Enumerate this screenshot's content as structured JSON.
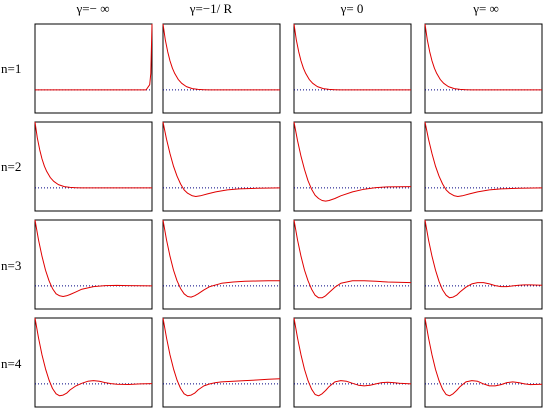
{
  "chart_data": {
    "type": "line",
    "title": "",
    "column_labels": [
      "γ=− ∞",
      "γ=−1/ R",
      "γ= 0",
      "γ= ∞"
    ],
    "row_labels": [
      "n=1",
      "n=2",
      "n=3",
      "n=4"
    ],
    "xlabel": "",
    "ylabel": "",
    "xlim": [
      0,
      1
    ],
    "ylim": [
      -0.35,
      1.0
    ],
    "baseline": 0,
    "colors": {
      "curve": "#e00000",
      "baseline": "#000080",
      "frame": "#000000"
    },
    "panels": [
      [
        {
          "x": [
            0,
            0.1,
            0.2,
            0.3,
            0.4,
            0.5,
            0.6,
            0.7,
            0.8,
            0.9,
            0.95,
            0.98,
            0.99,
            1.0
          ],
          "y": [
            0,
            0,
            0,
            0,
            0,
            0,
            0,
            0,
            0,
            0,
            0,
            0.08,
            0.25,
            1.0
          ]
        },
        {
          "x": [
            0,
            0.02,
            0.04,
            0.06,
            0.08,
            0.1,
            0.13,
            0.16,
            0.2,
            0.25,
            0.3,
            0.35,
            0.4,
            0.5,
            0.6,
            1.0
          ],
          "y": [
            1.0,
            0.76,
            0.58,
            0.44,
            0.33,
            0.25,
            0.16,
            0.1,
            0.05,
            0.02,
            0.008,
            0.003,
            0.001,
            0,
            0,
            0
          ]
        },
        {
          "x": [
            0,
            0.02,
            0.04,
            0.06,
            0.08,
            0.1,
            0.13,
            0.16,
            0.2,
            0.25,
            0.3,
            0.35,
            0.4,
            0.5,
            0.6,
            1.0
          ],
          "y": [
            1.0,
            0.76,
            0.58,
            0.44,
            0.33,
            0.25,
            0.16,
            0.1,
            0.05,
            0.02,
            0.008,
            0.003,
            0.001,
            0,
            0,
            0
          ]
        },
        {
          "x": [
            0,
            0.02,
            0.04,
            0.06,
            0.08,
            0.1,
            0.13,
            0.16,
            0.2,
            0.25,
            0.3,
            0.35,
            0.4,
            0.5,
            0.6,
            1.0
          ],
          "y": [
            1.0,
            0.76,
            0.58,
            0.44,
            0.33,
            0.25,
            0.16,
            0.1,
            0.05,
            0.02,
            0.008,
            0.003,
            0.001,
            0,
            0,
            0
          ]
        }
      ],
      [
        {
          "x": [
            0,
            0.02,
            0.04,
            0.06,
            0.08,
            0.1,
            0.13,
            0.16,
            0.2,
            0.25,
            0.3,
            0.35,
            0.4,
            0.5,
            0.6,
            1.0
          ],
          "y": [
            1.0,
            0.76,
            0.58,
            0.44,
            0.33,
            0.25,
            0.16,
            0.1,
            0.05,
            0.02,
            0.008,
            0.003,
            0.001,
            0,
            0,
            0
          ]
        },
        {
          "x": [
            0,
            0.03,
            0.06,
            0.09,
            0.12,
            0.15,
            0.18,
            0.21,
            0.25,
            0.28,
            0.32,
            0.38,
            0.45,
            0.55,
            0.65,
            0.8,
            1.0
          ],
          "y": [
            1.0,
            0.74,
            0.52,
            0.33,
            0.18,
            0.06,
            -0.03,
            -0.08,
            -0.12,
            -0.13,
            -0.12,
            -0.09,
            -0.06,
            -0.03,
            -0.015,
            -0.005,
            0
          ]
        },
        {
          "x": [
            0,
            0.03,
            0.06,
            0.09,
            0.12,
            0.15,
            0.18,
            0.21,
            0.24,
            0.27,
            0.3,
            0.35,
            0.4,
            0.5,
            0.6,
            0.7,
            0.8,
            1.0
          ],
          "y": [
            1.0,
            0.72,
            0.48,
            0.28,
            0.11,
            -0.02,
            -0.11,
            -0.16,
            -0.19,
            -0.2,
            -0.19,
            -0.16,
            -0.12,
            -0.06,
            -0.02,
            0.005,
            0.015,
            0.02
          ]
        },
        {
          "x": [
            0,
            0.03,
            0.06,
            0.09,
            0.12,
            0.15,
            0.18,
            0.21,
            0.25,
            0.28,
            0.32,
            0.38,
            0.45,
            0.55,
            0.65,
            0.8,
            1.0
          ],
          "y": [
            1.0,
            0.74,
            0.52,
            0.33,
            0.18,
            0.06,
            -0.03,
            -0.08,
            -0.12,
            -0.13,
            -0.12,
            -0.09,
            -0.06,
            -0.03,
            -0.015,
            -0.005,
            0
          ]
        }
      ],
      [
        {
          "x": [
            0,
            0.03,
            0.06,
            0.09,
            0.12,
            0.15,
            0.18,
            0.21,
            0.24,
            0.27,
            0.3,
            0.35,
            0.4,
            0.5,
            0.6,
            0.7,
            0.8,
            1.0
          ],
          "y": [
            1.0,
            0.7,
            0.45,
            0.24,
            0.08,
            -0.04,
            -0.12,
            -0.15,
            -0.16,
            -0.15,
            -0.13,
            -0.09,
            -0.05,
            -0.01,
            0.005,
            0.008,
            0.005,
            0
          ]
        },
        {
          "x": [
            0,
            0.03,
            0.06,
            0.09,
            0.12,
            0.15,
            0.18,
            0.21,
            0.24,
            0.27,
            0.3,
            0.35,
            0.4,
            0.5,
            0.6,
            0.7,
            0.8,
            0.9,
            1.0
          ],
          "y": [
            1.0,
            0.7,
            0.45,
            0.24,
            0.08,
            -0.04,
            -0.12,
            -0.16,
            -0.17,
            -0.15,
            -0.12,
            -0.06,
            -0.01,
            0.04,
            0.06,
            0.07,
            0.075,
            0.08,
            0.08
          ]
        },
        {
          "x": [
            0,
            0.03,
            0.06,
            0.09,
            0.12,
            0.15,
            0.18,
            0.21,
            0.24,
            0.27,
            0.3,
            0.35,
            0.4,
            0.5,
            0.6,
            0.7,
            0.8,
            1.0
          ],
          "y": [
            1.0,
            0.7,
            0.45,
            0.24,
            0.08,
            -0.05,
            -0.14,
            -0.18,
            -0.18,
            -0.15,
            -0.1,
            -0.02,
            0.04,
            0.08,
            0.08,
            0.07,
            0.06,
            0.05
          ]
        },
        {
          "x": [
            0,
            0.03,
            0.06,
            0.09,
            0.12,
            0.15,
            0.18,
            0.21,
            0.24,
            0.27,
            0.3,
            0.35,
            0.4,
            0.45,
            0.5,
            0.55,
            0.6,
            0.65,
            0.7,
            0.75,
            0.8,
            0.85,
            0.9,
            1.0
          ],
          "y": [
            1.0,
            0.7,
            0.45,
            0.24,
            0.07,
            -0.06,
            -0.14,
            -0.18,
            -0.17,
            -0.14,
            -0.09,
            -0.02,
            0.03,
            0.05,
            0.05,
            0.03,
            0.005,
            -0.01,
            -0.01,
            0.0,
            0.01,
            0.015,
            0.015,
            0.01
          ]
        }
      ],
      [
        {
          "x": [
            0,
            0.03,
            0.06,
            0.09,
            0.12,
            0.15,
            0.18,
            0.21,
            0.24,
            0.27,
            0.3,
            0.35,
            0.4,
            0.45,
            0.5,
            0.55,
            0.6,
            0.65,
            0.7,
            0.8,
            0.9,
            1.0
          ],
          "y": [
            1.0,
            0.7,
            0.44,
            0.23,
            0.06,
            -0.07,
            -0.15,
            -0.18,
            -0.17,
            -0.14,
            -0.09,
            -0.03,
            0.01,
            0.04,
            0.05,
            0.04,
            0.02,
            0.005,
            -0.005,
            -0.008,
            0.0,
            0.005
          ]
        },
        {
          "x": [
            0,
            0.03,
            0.06,
            0.09,
            0.12,
            0.15,
            0.18,
            0.21,
            0.24,
            0.27,
            0.3,
            0.35,
            0.4,
            0.45,
            0.5,
            0.6,
            0.7,
            0.8,
            0.9,
            1.0
          ],
          "y": [
            1.0,
            0.7,
            0.44,
            0.23,
            0.06,
            -0.07,
            -0.15,
            -0.18,
            -0.17,
            -0.14,
            -0.09,
            -0.03,
            0.0,
            0.02,
            0.03,
            0.04,
            0.05,
            0.06,
            0.07,
            0.08
          ]
        },
        {
          "x": [
            0,
            0.03,
            0.06,
            0.09,
            0.12,
            0.15,
            0.18,
            0.21,
            0.24,
            0.27,
            0.3,
            0.35,
            0.4,
            0.45,
            0.5,
            0.55,
            0.6,
            0.65,
            0.7,
            0.75,
            0.8,
            0.85,
            0.9,
            1.0
          ],
          "y": [
            1.0,
            0.7,
            0.44,
            0.22,
            0.05,
            -0.08,
            -0.16,
            -0.18,
            -0.15,
            -0.1,
            -0.04,
            0.03,
            0.05,
            0.04,
            0.01,
            -0.02,
            -0.03,
            -0.02,
            0.0,
            0.02,
            0.025,
            0.02,
            0.01,
            0.0
          ]
        },
        {
          "x": [
            0,
            0.03,
            0.06,
            0.09,
            0.12,
            0.15,
            0.18,
            0.21,
            0.24,
            0.27,
            0.3,
            0.35,
            0.4,
            0.45,
            0.5,
            0.55,
            0.6,
            0.65,
            0.7,
            0.75,
            0.8,
            0.85,
            0.9,
            1.0
          ],
          "y": [
            1.0,
            0.7,
            0.44,
            0.22,
            0.05,
            -0.08,
            -0.16,
            -0.18,
            -0.15,
            -0.1,
            -0.04,
            0.03,
            0.05,
            0.04,
            0.0,
            -0.03,
            -0.03,
            -0.01,
            0.02,
            0.03,
            0.02,
            0.0,
            -0.01,
            -0.005
          ]
        }
      ]
    ]
  }
}
